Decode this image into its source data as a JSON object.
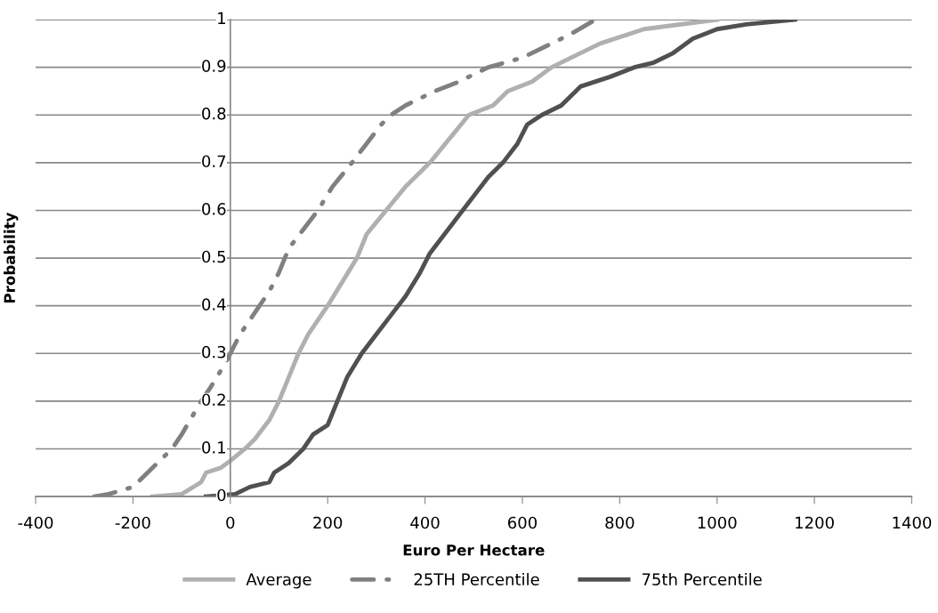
{
  "chart_data": {
    "type": "line",
    "xlabel": "Euro Per Hectare",
    "ylabel": "Probability",
    "xlim": [
      -400,
      1400
    ],
    "xticks": [
      -400,
      -200,
      0,
      200,
      400,
      600,
      800,
      1000,
      1200,
      1400
    ],
    "ylim": [
      0,
      1
    ],
    "yticks": [
      0,
      0.1,
      0.2,
      0.3,
      0.4,
      0.5,
      0.6,
      0.7,
      0.8,
      0.9,
      1
    ],
    "grid": "y",
    "legend": "bottom",
    "marker": "none",
    "series": [
      {
        "name": "Average",
        "color": "#b0b0b0",
        "line_style": "solid",
        "x": [
          -160,
          -100,
          -60,
          -50,
          -20,
          0,
          30,
          50,
          80,
          100,
          120,
          140,
          160,
          200,
          230,
          260,
          280,
          320,
          360,
          410,
          450,
          490,
          540,
          570,
          620,
          660,
          700,
          760,
          850,
          1000
        ],
        "values": [
          0,
          0.005,
          0.03,
          0.05,
          0.06,
          0.075,
          0.1,
          0.12,
          0.16,
          0.2,
          0.25,
          0.3,
          0.34,
          0.4,
          0.45,
          0.5,
          0.55,
          0.6,
          0.65,
          0.7,
          0.75,
          0.8,
          0.82,
          0.85,
          0.87,
          0.9,
          0.92,
          0.95,
          0.98,
          1.0
        ]
      },
      {
        "name": "25TH Percentile",
        "color": "#808080",
        "line_style": "dashdot",
        "x": [
          -280,
          -250,
          -200,
          -170,
          -150,
          -120,
          -100,
          -60,
          -40,
          -10,
          0,
          20,
          40,
          60,
          80,
          100,
          120,
          150,
          180,
          210,
          250,
          280,
          310,
          330,
          360,
          420,
          470,
          530,
          600,
          660,
          700,
          750
        ],
        "values": [
          0,
          0.005,
          0.02,
          0.05,
          0.07,
          0.1,
          0.13,
          0.2,
          0.23,
          0.28,
          0.3,
          0.34,
          0.37,
          0.4,
          0.43,
          0.47,
          0.52,
          0.56,
          0.6,
          0.65,
          0.7,
          0.74,
          0.78,
          0.8,
          0.82,
          0.85,
          0.87,
          0.9,
          0.92,
          0.95,
          0.97,
          1.0
        ]
      },
      {
        "name": "75th Percentile",
        "color": "#505050",
        "line_style": "solid",
        "x": [
          -50,
          10,
          40,
          80,
          90,
          120,
          150,
          170,
          200,
          220,
          240,
          270,
          300,
          330,
          360,
          390,
          410,
          440,
          470,
          500,
          530,
          560,
          590,
          610,
          640,
          680,
          720,
          780,
          830,
          870,
          910,
          950,
          1000,
          1060,
          1160
        ],
        "values": [
          0,
          0.005,
          0.02,
          0.03,
          0.05,
          0.07,
          0.1,
          0.13,
          0.15,
          0.2,
          0.25,
          0.3,
          0.34,
          0.38,
          0.42,
          0.47,
          0.51,
          0.55,
          0.59,
          0.63,
          0.67,
          0.7,
          0.74,
          0.78,
          0.8,
          0.82,
          0.86,
          0.88,
          0.9,
          0.91,
          0.93,
          0.96,
          0.98,
          0.99,
          1.0
        ]
      }
    ]
  }
}
